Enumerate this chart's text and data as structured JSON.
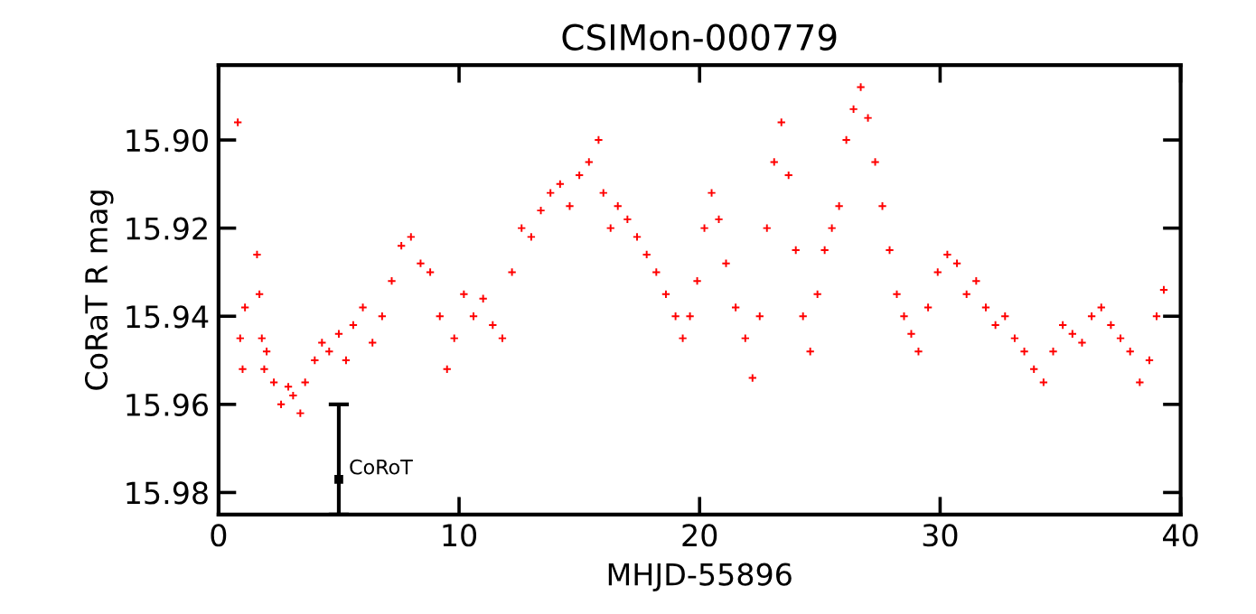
{
  "chart_data": {
    "type": "scatter",
    "title": "CSIMon-000779",
    "xlabel": "MHJD-55896",
    "ylabel": "CoRaT R mag",
    "xlim": [
      0,
      40
    ],
    "xticks": [
      0,
      10,
      20,
      30,
      40
    ],
    "ylim": [
      15.985,
      15.883
    ],
    "yticks": [
      {
        "value": 15.9,
        "label": "15.90"
      },
      {
        "value": 15.92,
        "label": "15.92"
      },
      {
        "value": 15.94,
        "label": "15.94"
      },
      {
        "value": 15.96,
        "label": "15.96"
      },
      {
        "value": 15.98,
        "label": "15.98"
      }
    ],
    "grid": false,
    "legend": false,
    "marker": "cross",
    "series": [
      {
        "color": "#ff0000",
        "x": [
          0.8,
          0.9,
          1.0,
          1.1,
          1.6,
          1.7,
          1.8,
          1.9,
          2.0,
          2.3,
          2.6,
          2.9,
          3.1,
          3.4,
          3.6,
          4.0,
          4.3,
          4.6,
          5.0,
          5.3,
          5.6,
          6.0,
          6.4,
          6.8,
          7.2,
          7.6,
          8.0,
          8.4,
          8.8,
          9.2,
          9.5,
          9.8,
          10.2,
          10.6,
          11.0,
          11.4,
          11.8,
          12.2,
          12.6,
          13.0,
          13.4,
          13.8,
          14.2,
          14.6,
          15.0,
          15.4,
          15.8,
          16.0,
          16.3,
          16.6,
          17.0,
          17.4,
          17.8,
          18.2,
          18.6,
          19.0,
          19.3,
          19.6,
          19.9,
          20.2,
          20.5,
          20.8,
          21.1,
          21.5,
          21.9,
          22.2,
          22.5,
          22.8,
          23.1,
          23.4,
          23.7,
          24.0,
          24.3,
          24.6,
          24.9,
          25.2,
          25.5,
          25.8,
          26.1,
          26.4,
          26.7,
          27.0,
          27.3,
          27.6,
          27.9,
          28.2,
          28.5,
          28.8,
          29.1,
          29.5,
          29.9,
          30.3,
          30.7,
          31.1,
          31.5,
          31.9,
          32.3,
          32.7,
          33.1,
          33.5,
          33.9,
          34.3,
          34.7,
          35.1,
          35.5,
          35.9,
          36.3,
          36.7,
          37.1,
          37.5,
          37.9,
          38.3,
          38.7,
          39.0,
          39.3
        ],
        "values": [
          15.896,
          15.945,
          15.952,
          15.938,
          15.926,
          15.935,
          15.945,
          15.952,
          15.948,
          15.955,
          15.96,
          15.956,
          15.958,
          15.962,
          15.955,
          15.95,
          15.946,
          15.948,
          15.944,
          15.95,
          15.942,
          15.938,
          15.946,
          15.94,
          15.932,
          15.924,
          15.922,
          15.928,
          15.93,
          15.94,
          15.952,
          15.945,
          15.935,
          15.94,
          15.936,
          15.942,
          15.945,
          15.93,
          15.92,
          15.922,
          15.916,
          15.912,
          15.91,
          15.915,
          15.908,
          15.905,
          15.9,
          15.912,
          15.92,
          15.915,
          15.918,
          15.922,
          15.926,
          15.93,
          15.935,
          15.94,
          15.945,
          15.94,
          15.932,
          15.92,
          15.912,
          15.918,
          15.928,
          15.938,
          15.945,
          15.954,
          15.94,
          15.92,
          15.905,
          15.896,
          15.908,
          15.925,
          15.94,
          15.948,
          15.935,
          15.925,
          15.92,
          15.915,
          15.9,
          15.893,
          15.888,
          15.895,
          15.905,
          15.915,
          15.925,
          15.935,
          15.94,
          15.944,
          15.948,
          15.938,
          15.93,
          15.926,
          15.928,
          15.935,
          15.932,
          15.938,
          15.942,
          15.94,
          15.945,
          15.948,
          15.952,
          15.955,
          15.948,
          15.942,
          15.944,
          15.946,
          15.94,
          15.938,
          15.942,
          15.945,
          15.948,
          15.955,
          15.95,
          15.94,
          15.934
        ]
      },
      {
        "color": "#000000",
        "marker": "square",
        "x": [
          5
        ],
        "values": [
          15.977
        ],
        "errors": [
          [
            15.96,
            15.985
          ]
        ]
      }
    ],
    "annotations": [
      "CoRoT"
    ]
  }
}
